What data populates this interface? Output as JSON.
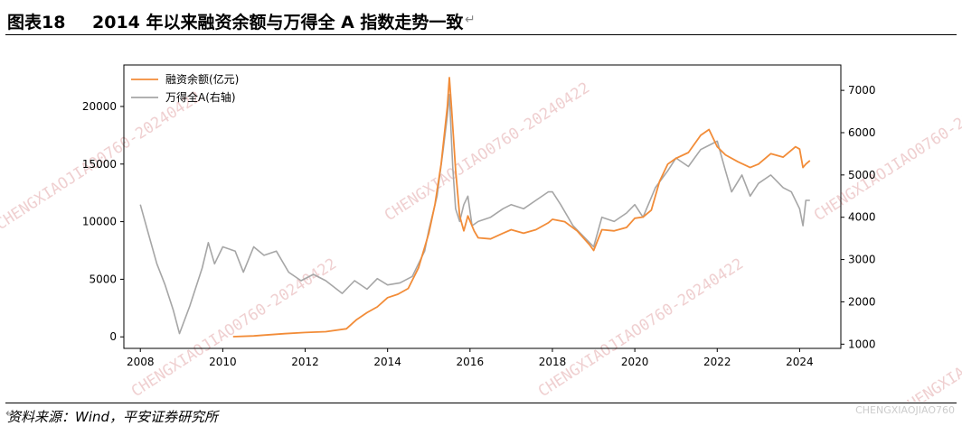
{
  "header": {
    "figure_no": "图表18",
    "title": "2014 年以来融资余额与万得全 A 指数走势一致",
    "return_mark": "↵"
  },
  "footer": {
    "source": "资料来源：Wind，平安证券研究所",
    "return_mark": "↵"
  },
  "watermark": "CHENGXIAOJIAO0760-20240422",
  "corner_watermark": "CHENGXIAOJIAO760",
  "colors": {
    "margin": "#f28c38",
    "index": "#a6a6a6"
  },
  "chart_data": {
    "type": "line",
    "x_ticks": [
      "2008",
      "2010",
      "2012",
      "2014",
      "2016",
      "2018",
      "2020",
      "2022",
      "2024"
    ],
    "xlim": [
      2007.6,
      2025.0
    ],
    "left_axis": {
      "ylim": [
        -1000,
        23600
      ],
      "ticks": [
        0,
        5000,
        10000,
        15000,
        20000
      ]
    },
    "right_axis": {
      "ylim": [
        900,
        7600
      ],
      "ticks": [
        1000,
        2000,
        3000,
        4000,
        5000,
        6000,
        7000
      ]
    },
    "legend_position": "top-left",
    "series": [
      {
        "name": "融资余额(亿元)",
        "axis": "left",
        "points": [
          [
            2010.25,
            20
          ],
          [
            2010.75,
            80
          ],
          [
            2011.0,
            150
          ],
          [
            2011.5,
            280
          ],
          [
            2012.0,
            380
          ],
          [
            2012.5,
            450
          ],
          [
            2013.0,
            700
          ],
          [
            2013.25,
            1500
          ],
          [
            2013.5,
            2100
          ],
          [
            2013.75,
            2600
          ],
          [
            2014.0,
            3400
          ],
          [
            2014.25,
            3700
          ],
          [
            2014.5,
            4200
          ],
          [
            2014.75,
            6000
          ],
          [
            2015.0,
            9000
          ],
          [
            2015.15,
            11500
          ],
          [
            2015.3,
            15000
          ],
          [
            2015.45,
            20000
          ],
          [
            2015.5,
            22500
          ],
          [
            2015.55,
            20000
          ],
          [
            2015.65,
            14500
          ],
          [
            2015.75,
            10500
          ],
          [
            2015.85,
            9200
          ],
          [
            2015.95,
            10500
          ],
          [
            2016.1,
            9200
          ],
          [
            2016.2,
            8600
          ],
          [
            2016.5,
            8500
          ],
          [
            2016.8,
            9000
          ],
          [
            2017.0,
            9300
          ],
          [
            2017.3,
            9000
          ],
          [
            2017.6,
            9300
          ],
          [
            2017.9,
            9900
          ],
          [
            2018.0,
            10200
          ],
          [
            2018.3,
            10000
          ],
          [
            2018.6,
            9200
          ],
          [
            2018.9,
            8000
          ],
          [
            2019.0,
            7500
          ],
          [
            2019.2,
            9300
          ],
          [
            2019.5,
            9200
          ],
          [
            2019.8,
            9500
          ],
          [
            2020.0,
            10300
          ],
          [
            2020.2,
            10400
          ],
          [
            2020.4,
            11000
          ],
          [
            2020.6,
            13500
          ],
          [
            2020.8,
            15000
          ],
          [
            2021.0,
            15500
          ],
          [
            2021.3,
            16000
          ],
          [
            2021.6,
            17500
          ],
          [
            2021.8,
            18000
          ],
          [
            2022.0,
            16500
          ],
          [
            2022.2,
            15800
          ],
          [
            2022.5,
            15200
          ],
          [
            2022.8,
            14700
          ],
          [
            2023.0,
            15000
          ],
          [
            2023.3,
            15900
          ],
          [
            2023.6,
            15600
          ],
          [
            2023.9,
            16500
          ],
          [
            2024.0,
            16300
          ],
          [
            2024.08,
            14700
          ],
          [
            2024.15,
            15000
          ],
          [
            2024.25,
            15300
          ]
        ]
      },
      {
        "name": "万得全A(右轴)",
        "axis": "right",
        "points": [
          [
            2008.0,
            4300
          ],
          [
            2008.2,
            3600
          ],
          [
            2008.4,
            2900
          ],
          [
            2008.6,
            2400
          ],
          [
            2008.8,
            1800
          ],
          [
            2008.95,
            1250
          ],
          [
            2009.2,
            1900
          ],
          [
            2009.5,
            2800
          ],
          [
            2009.65,
            3400
          ],
          [
            2009.8,
            2900
          ],
          [
            2010.0,
            3300
          ],
          [
            2010.3,
            3200
          ],
          [
            2010.5,
            2700
          ],
          [
            2010.75,
            3300
          ],
          [
            2011.0,
            3100
          ],
          [
            2011.3,
            3200
          ],
          [
            2011.6,
            2700
          ],
          [
            2011.9,
            2500
          ],
          [
            2012.2,
            2650
          ],
          [
            2012.5,
            2500
          ],
          [
            2012.9,
            2200
          ],
          [
            2013.2,
            2500
          ],
          [
            2013.5,
            2300
          ],
          [
            2013.75,
            2550
          ],
          [
            2014.0,
            2400
          ],
          [
            2014.3,
            2450
          ],
          [
            2014.6,
            2600
          ],
          [
            2014.9,
            3200
          ],
          [
            2015.0,
            3700
          ],
          [
            2015.2,
            4500
          ],
          [
            2015.35,
            5600
          ],
          [
            2015.45,
            6400
          ],
          [
            2015.5,
            6900
          ],
          [
            2015.58,
            5200
          ],
          [
            2015.65,
            4200
          ],
          [
            2015.75,
            3900
          ],
          [
            2015.85,
            4300
          ],
          [
            2015.95,
            4500
          ],
          [
            2016.05,
            3800
          ],
          [
            2016.2,
            3900
          ],
          [
            2016.5,
            4000
          ],
          [
            2016.8,
            4200
          ],
          [
            2017.0,
            4300
          ],
          [
            2017.3,
            4200
          ],
          [
            2017.6,
            4400
          ],
          [
            2017.9,
            4600
          ],
          [
            2018.0,
            4600
          ],
          [
            2018.2,
            4300
          ],
          [
            2018.5,
            3800
          ],
          [
            2018.8,
            3500
          ],
          [
            2019.0,
            3300
          ],
          [
            2019.2,
            4000
          ],
          [
            2019.5,
            3900
          ],
          [
            2019.8,
            4100
          ],
          [
            2020.0,
            4300
          ],
          [
            2020.2,
            4000
          ],
          [
            2020.5,
            4700
          ],
          [
            2020.8,
            5100
          ],
          [
            2021.0,
            5400
          ],
          [
            2021.3,
            5200
          ],
          [
            2021.6,
            5600
          ],
          [
            2021.8,
            5700
          ],
          [
            2022.0,
            5800
          ],
          [
            2022.2,
            5100
          ],
          [
            2022.35,
            4600
          ],
          [
            2022.6,
            5000
          ],
          [
            2022.8,
            4500
          ],
          [
            2023.0,
            4800
          ],
          [
            2023.3,
            5000
          ],
          [
            2023.6,
            4700
          ],
          [
            2023.8,
            4600
          ],
          [
            2024.0,
            4200
          ],
          [
            2024.08,
            3800
          ],
          [
            2024.15,
            4400
          ],
          [
            2024.25,
            4400
          ]
        ]
      }
    ]
  }
}
